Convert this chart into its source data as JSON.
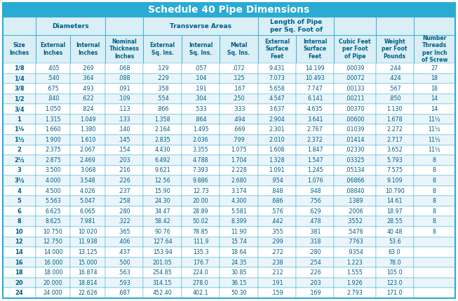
{
  "title": "Schedule 40 Pipe Dimensions",
  "title_bg": "#29ABD4",
  "title_color": "white",
  "header_bg": "#D9EEF5",
  "alt_row_bg": "#EAF5FB",
  "white_row_bg": "#FFFFFF",
  "border_color": "#29ABD4",
  "header_text_color": "#005F87",
  "data_text_color": "#005F87",
  "col_headers": [
    "Size\nInches",
    "External\nInches",
    "Internal\nInches",
    "Nominal\nThickness\nInches",
    "External\nSq. Ins.",
    "Internal\nSq. Ins.",
    "Metal\nSq. Ins.",
    "External\nSurface\nFeet",
    "Internal\nSurface\nFeet",
    "Cubic Feet\nper Foot\nof Pipe",
    "Weight\nper Foot\nPounds",
    "Number\nThreads\nper Inch\nof Screw"
  ],
  "groups": [
    {
      "cs": 0,
      "ce": 1,
      "label": ""
    },
    {
      "cs": 1,
      "ce": 3,
      "label": "Diameters"
    },
    {
      "cs": 3,
      "ce": 4,
      "label": ""
    },
    {
      "cs": 4,
      "ce": 7,
      "label": "Transverse Areas"
    },
    {
      "cs": 7,
      "ce": 9,
      "label": "Length of Pipe\nper Sq. Foot of"
    },
    {
      "cs": 9,
      "ce": 10,
      "label": ""
    },
    {
      "cs": 10,
      "ce": 11,
      "label": ""
    },
    {
      "cs": 11,
      "ce": 12,
      "label": ""
    }
  ],
  "col_widths_rel": [
    3.0,
    3.2,
    3.2,
    3.5,
    3.5,
    3.5,
    3.5,
    3.5,
    3.5,
    3.8,
    3.5,
    3.8
  ],
  "rows": [
    [
      "1/8",
      ".405",
      ".269",
      ".068",
      ".129",
      ".057",
      ".072",
      "9.431",
      "14.199",
      ".00039",
      ".244",
      "27"
    ],
    [
      "1/4",
      ".540",
      ".364",
      ".088",
      ".229",
      ".104",
      ".125",
      "7.073",
      "10.493",
      ".00072",
      ".424",
      "18"
    ],
    [
      "3/8",
      ".675",
      ".493",
      ".091",
      ".358",
      ".191",
      ".167",
      "5.658",
      "7.747",
      ".00133",
      ".567",
      "18"
    ],
    [
      "1/2",
      ".840",
      ".622",
      ".109",
      ".554",
      ".304",
      ".250",
      "4.547",
      "6.141",
      ".00211",
      ".850",
      "14"
    ],
    [
      "3/4",
      "1.050",
      ".824",
      ".113",
      ".866",
      ".533",
      ".333",
      "3.637",
      "4.635",
      ".00370",
      "1.130",
      "14"
    ],
    [
      "1",
      "1.315",
      "1.049",
      ".133",
      "1.358",
      ".864",
      ".494",
      "2.904",
      "3.641",
      ".00600",
      "1.678",
      "11½"
    ],
    [
      "1¼",
      "1.660",
      "1.380",
      ".140",
      "2.164",
      "1.495",
      ".669",
      "2.301",
      "2.767",
      ".01039",
      "2.272",
      "11½"
    ],
    [
      "1½",
      "1.900",
      "1.610",
      ".145",
      "2.835",
      "2.036",
      ".799",
      "2.010",
      "2.372",
      ".01414",
      "2.717",
      "11½"
    ],
    [
      "2",
      "2.375",
      "2.067",
      ".154",
      "4.430",
      "3.355",
      "1.075",
      "1.608",
      "1.847",
      ".02330",
      "3.652",
      "11½"
    ],
    [
      "2½",
      "2.875",
      "2.469",
      ".203",
      "6.492",
      "4.788",
      "1.704",
      "1.328",
      "1.547",
      ".03325",
      "5.793",
      "8"
    ],
    [
      "3",
      "3.500",
      "3.068",
      ".216",
      "9.621",
      "7.393",
      "2.228",
      "1.091",
      "1.245",
      ".05134",
      "7.575",
      "8"
    ],
    [
      "3½",
      "4.000",
      "3.548",
      ".226",
      "12.56",
      "9.886",
      "2.680",
      ".954",
      "1.076",
      ".06866",
      "9.109",
      "8"
    ],
    [
      "4",
      "4.500",
      "4.026",
      ".237",
      "15.90",
      "12.73",
      "3.174",
      ".848",
      ".948",
      ".08840",
      "10.790",
      "8"
    ],
    [
      "5",
      "5.563",
      "5.047",
      ".258",
      "24.30",
      "20.00",
      "4.300",
      ".686",
      ".756",
      ".1389",
      "14.61",
      "8"
    ],
    [
      "6",
      "6.625",
      "6.065",
      ".280",
      "34.47",
      "28.89",
      "5.581",
      ".576",
      ".629",
      ".2006",
      "18.97",
      "8"
    ],
    [
      "8",
      "8.625",
      "7.981",
      ".322",
      "58.42",
      "50.02",
      "8.399",
      ".442",
      ".478",
      ".3552",
      "28.55",
      "8"
    ],
    [
      "10",
      "10.750",
      "10.020",
      ".365",
      "90.76",
      "78.85",
      "11.90",
      ".355",
      ".381",
      ".5476",
      "40.48",
      "8"
    ],
    [
      "12",
      "12.750",
      "11.938",
      ".406",
      "127.64",
      "111.9",
      "15.74",
      ".299",
      ".318",
      ".7763",
      "53.6",
      ""
    ],
    [
      "14",
      "14.000",
      "13.125",
      ".437",
      "153.94",
      "135.3",
      "18.64",
      ".272",
      ".280",
      ".9354",
      "63.0",
      ""
    ],
    [
      "16",
      "16.000",
      "15.000",
      ".500",
      "201.05",
      "176.7",
      "24.35",
      ".238",
      ".254",
      "1.223",
      "78.0",
      ""
    ],
    [
      "18",
      "18.000",
      "16.874",
      ".563",
      "254.85",
      "224.0",
      "30.85",
      ".212",
      ".226",
      "1.555",
      "105.0",
      ""
    ],
    [
      "20",
      "20.000",
      "18.814",
      ".593",
      "314.15",
      "278.0",
      "36.15",
      ".191",
      ".203",
      "1.926",
      "123.0",
      ""
    ],
    [
      "24",
      "24.000",
      "22.626",
      ".687",
      "452.40",
      "402.1",
      "50.30",
      ".159",
      ".169",
      "2.793",
      "171.0",
      ""
    ]
  ]
}
